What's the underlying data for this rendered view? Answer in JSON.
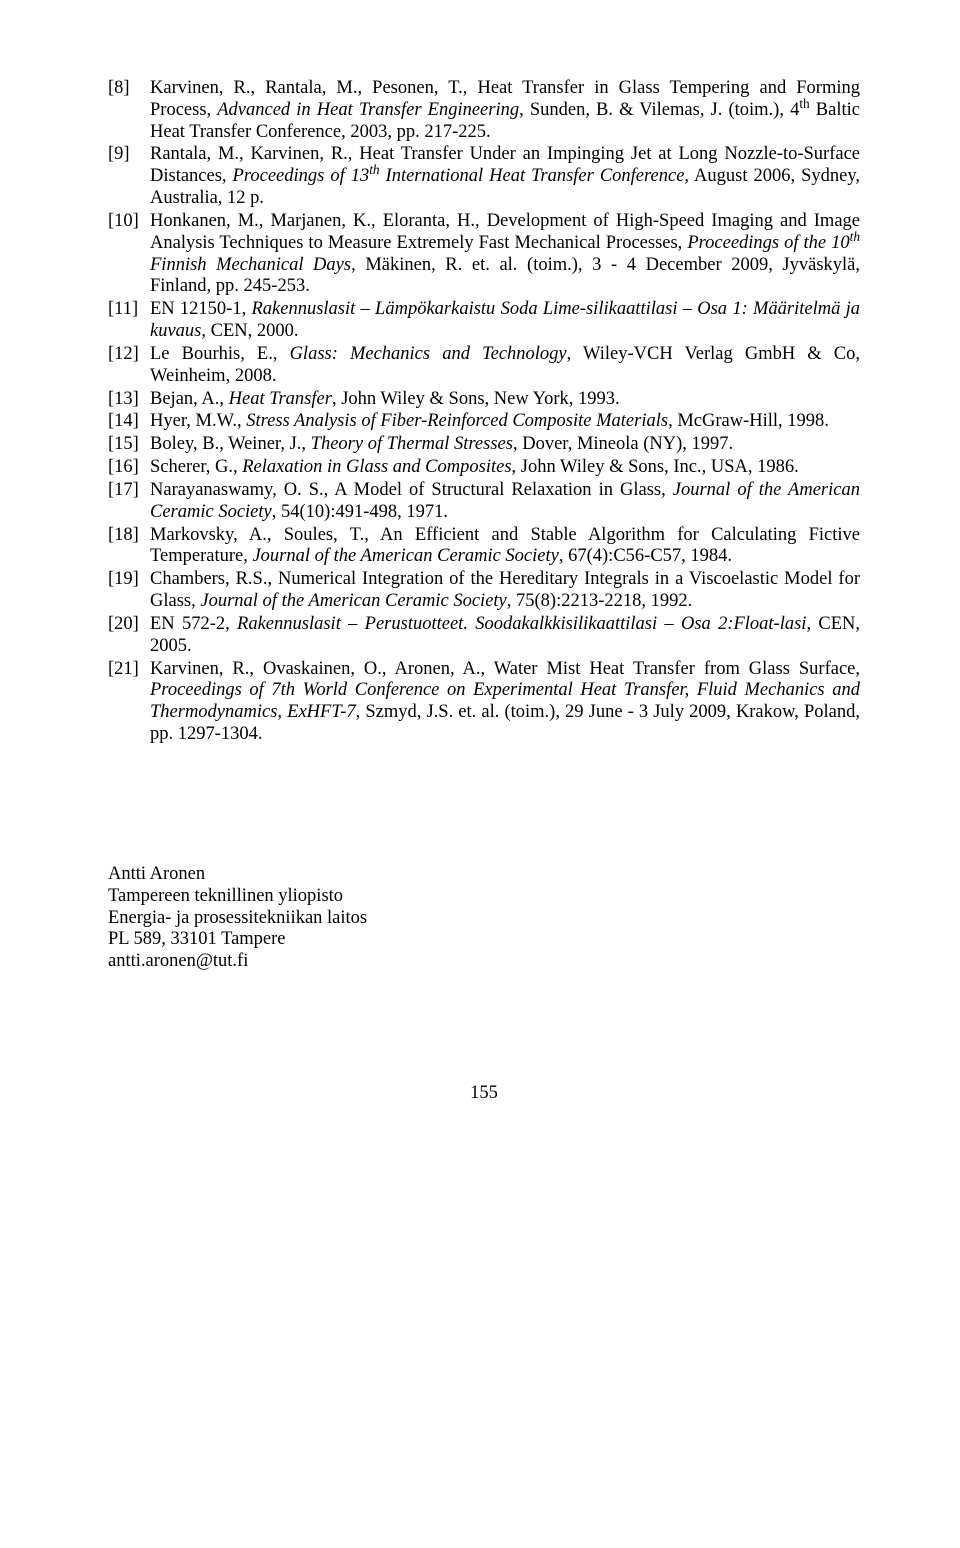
{
  "refs": [
    {
      "num": "[8]",
      "parts": [
        {
          "t": "Karvinen, R., Rantala, M., Pesonen, T., Heat Transfer in Glass Tempering and Forming Process, "
        },
        {
          "t": "Advanced in Heat Transfer Engineering",
          "i": true
        },
        {
          "t": ", Sunden, B. & Vilemas, J. (toim.), 4"
        },
        {
          "t": "th",
          "sup": true
        },
        {
          "t": " Baltic Heat Transfer Conference, 2003, pp. 217-225."
        }
      ]
    },
    {
      "num": "[9]",
      "parts": [
        {
          "t": "Rantala, M., Karvinen, R., Heat Transfer Under an Impinging Jet at Long Nozzle-to-Surface Distances, "
        },
        {
          "t": "Proceedings of 13",
          "i": true
        },
        {
          "t": "th",
          "i": true,
          "sup": true
        },
        {
          "t": " International Heat Transfer Conference",
          "i": true
        },
        {
          "t": ", August 2006, Sydney, Australia, 12 p."
        }
      ]
    },
    {
      "num": "[10]",
      "parts": [
        {
          "t": "Honkanen, M., Marjanen, K., Eloranta, H., Development of High-Speed Imaging and Image Analysis Techniques to Measure Extremely Fast Mechanical Processes, "
        },
        {
          "t": "Proceedings of the 10",
          "i": true
        },
        {
          "t": "th",
          "i": true,
          "sup": true
        },
        {
          "t": " Finnish Mechanical Days",
          "i": true
        },
        {
          "t": ", Mäkinen, R. et. al. (toim.), 3 - 4 December 2009, Jyväskylä, Finland, pp. 245-253."
        }
      ]
    },
    {
      "num": "[11]",
      "parts": [
        {
          "t": "EN 12150-1, "
        },
        {
          "t": "Rakennuslasit – Lämpökarkaistu Soda Lime-silikaattilasi – Osa 1: Määritelmä ja kuvaus",
          "i": true
        },
        {
          "t": ", CEN, 2000."
        }
      ]
    },
    {
      "num": "[12]",
      "parts": [
        {
          "t": "Le Bourhis, E., "
        },
        {
          "t": "Glass: Mechanics and Technology",
          "i": true
        },
        {
          "t": ", Wiley-VCH Verlag GmbH & Co, Weinheim, 2008."
        }
      ]
    },
    {
      "num": "[13]",
      "parts": [
        {
          "t": "Bejan, A., "
        },
        {
          "t": "Heat Transfer",
          "i": true
        },
        {
          "t": ", John Wiley & Sons, New York, 1993."
        }
      ]
    },
    {
      "num": "[14]",
      "parts": [
        {
          "t": "Hyer, M.W., "
        },
        {
          "t": "Stress Analysis of Fiber-Reinforced Composite Materials",
          "i": true
        },
        {
          "t": ", McGraw-Hill, 1998."
        }
      ]
    },
    {
      "num": "[15]",
      "parts": [
        {
          "t": "Boley, B., Weiner, J., "
        },
        {
          "t": "Theory of Thermal Stresses",
          "i": true
        },
        {
          "t": ", Dover, Mineola (NY), 1997."
        }
      ]
    },
    {
      "num": "[16]",
      "parts": [
        {
          "t": "Scherer, G., "
        },
        {
          "t": "Relaxation in Glass and Composites",
          "i": true
        },
        {
          "t": ", John Wiley & Sons, Inc., USA, 1986."
        }
      ]
    },
    {
      "num": "[17]",
      "parts": [
        {
          "t": "Narayanaswamy, O. S., A Model of Structural Relaxation in Glass, "
        },
        {
          "t": "Journal of the American Ceramic Society",
          "i": true
        },
        {
          "t": ", 54(10):491-498, 1971."
        }
      ]
    },
    {
      "num": "[18]",
      "parts": [
        {
          "t": "Markovsky, A., Soules, T., An Efficient and Stable Algorithm for Calculating Fictive Temperature, "
        },
        {
          "t": "Journal of the American Ceramic Society",
          "i": true
        },
        {
          "t": ", 67(4):C56-C57, 1984."
        }
      ]
    },
    {
      "num": "[19]",
      "parts": [
        {
          "t": "Chambers, R.S., Numerical Integration of the Hereditary Integrals in a Viscoelastic Model for Glass, "
        },
        {
          "t": "Journal of the American Ceramic Society",
          "i": true
        },
        {
          "t": ", 75(8):2213-2218, 1992."
        }
      ]
    },
    {
      "num": "[20]",
      "parts": [
        {
          "t": "EN 572-2, "
        },
        {
          "t": "Rakennuslasit – Perustuotteet. Soodakalkkisilikaattilasi – Osa 2:Float-lasi",
          "i": true
        },
        {
          "t": ", CEN, 2005."
        }
      ]
    },
    {
      "num": "[21]",
      "parts": [
        {
          "t": "Karvinen, R., Ovaskainen, O., Aronen, A., Water Mist Heat Transfer from Glass Surface, "
        },
        {
          "t": "Proceedings of 7th World Conference on Experimental Heat Transfer, Fluid Mechanics and Thermodynamics, ExHFT-7,",
          "i": true
        },
        {
          "t": " Szmyd, J.S. et. al. (toim.), 29 June - 3 July 2009, Krakow, Poland, pp. 1297-1304."
        }
      ]
    }
  ],
  "author": {
    "name": "Antti Aronen",
    "affiliation": "Tampereen teknillinen yliopisto",
    "department": "Energia- ja prosessitekniikan laitos",
    "address": "PL 589, 33101 Tampere",
    "email": "antti.aronen@tut.fi"
  },
  "page_number": "155"
}
